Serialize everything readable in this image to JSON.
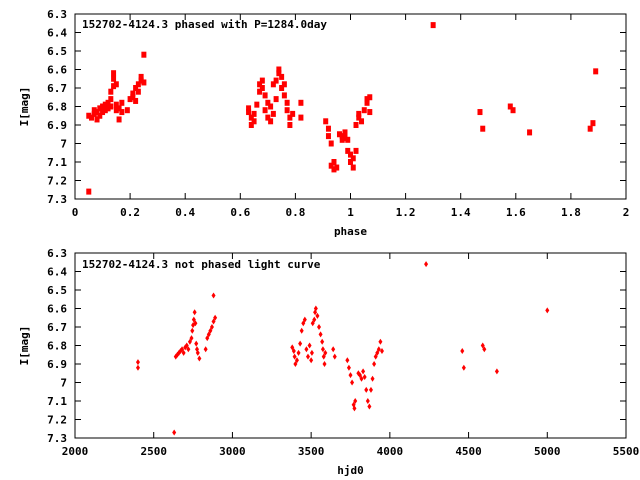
{
  "chart_data": [
    {
      "type": "scatter",
      "title": "152702-4124.3 phased with P=1284.0day",
      "xlabel": "phase",
      "ylabel": "I[mag]",
      "xlim": [
        0,
        2
      ],
      "ylim": [
        7.3,
        6.3
      ],
      "y_inverted": true,
      "xticks": [
        "0",
        "0.2",
        "0.4",
        "0.6",
        "0.8",
        "1",
        "1.2",
        "1.4",
        "1.6",
        "1.8",
        "2"
      ],
      "yticks": [
        "6.3",
        "6.4",
        "6.5",
        "6.6",
        "6.7",
        "6.8",
        "6.9",
        "7",
        "7.1",
        "7.2",
        "7.3"
      ],
      "grid": false,
      "marker_color": "#ff0000",
      "marker": "square",
      "points": [
        [
          0.05,
          7.26
        ],
        [
          0.05,
          6.85
        ],
        [
          0.06,
          6.86
        ],
        [
          0.07,
          6.84
        ],
        [
          0.07,
          6.82
        ],
        [
          0.08,
          6.87
        ],
        [
          0.08,
          6.83
        ],
        [
          0.09,
          6.81
        ],
        [
          0.09,
          6.85
        ],
        [
          0.1,
          6.83
        ],
        [
          0.1,
          6.8
        ],
        [
          0.11,
          6.82
        ],
        [
          0.11,
          6.79
        ],
        [
          0.12,
          6.81
        ],
        [
          0.12,
          6.78
        ],
        [
          0.13,
          6.8
        ],
        [
          0.13,
          6.76
        ],
        [
          0.13,
          6.72
        ],
        [
          0.14,
          6.69
        ],
        [
          0.14,
          6.65
        ],
        [
          0.14,
          6.62
        ],
        [
          0.15,
          6.68
        ],
        [
          0.15,
          6.79
        ],
        [
          0.15,
          6.82
        ],
        [
          0.16,
          6.81
        ],
        [
          0.16,
          6.87
        ],
        [
          0.17,
          6.78
        ],
        [
          0.17,
          6.83
        ],
        [
          0.19,
          6.82
        ],
        [
          0.2,
          6.76
        ],
        [
          0.21,
          6.75
        ],
        [
          0.21,
          6.73
        ],
        [
          0.22,
          6.7
        ],
        [
          0.22,
          6.77
        ],
        [
          0.23,
          6.72
        ],
        [
          0.23,
          6.68
        ],
        [
          0.24,
          6.66
        ],
        [
          0.24,
          6.64
        ],
        [
          0.25,
          6.67
        ],
        [
          0.25,
          6.52
        ],
        [
          0.63,
          6.81
        ],
        [
          0.63,
          6.83
        ],
        [
          0.64,
          6.86
        ],
        [
          0.64,
          6.9
        ],
        [
          0.65,
          6.88
        ],
        [
          0.65,
          6.84
        ],
        [
          0.66,
          6.79
        ],
        [
          0.67,
          6.72
        ],
        [
          0.67,
          6.68
        ],
        [
          0.68,
          6.66
        ],
        [
          0.68,
          6.7
        ],
        [
          0.69,
          6.74
        ],
        [
          0.69,
          6.82
        ],
        [
          0.7,
          6.86
        ],
        [
          0.7,
          6.78
        ],
        [
          0.71,
          6.8
        ],
        [
          0.71,
          6.88
        ],
        [
          0.72,
          6.84
        ],
        [
          0.72,
          6.68
        ],
        [
          0.73,
          6.66
        ],
        [
          0.73,
          6.76
        ],
        [
          0.74,
          6.62
        ],
        [
          0.74,
          6.6
        ],
        [
          0.75,
          6.64
        ],
        [
          0.75,
          6.7
        ],
        [
          0.76,
          6.68
        ],
        [
          0.76,
          6.74
        ],
        [
          0.77,
          6.78
        ],
        [
          0.77,
          6.82
        ],
        [
          0.78,
          6.86
        ],
        [
          0.78,
          6.9
        ],
        [
          0.79,
          6.84
        ],
        [
          0.82,
          6.78
        ],
        [
          0.82,
          6.86
        ],
        [
          0.91,
          6.88
        ],
        [
          0.92,
          6.92
        ],
        [
          0.92,
          6.96
        ],
        [
          0.93,
          7.0
        ],
        [
          0.93,
          7.12
        ],
        [
          0.94,
          7.14
        ],
        [
          0.94,
          7.1
        ],
        [
          0.95,
          7.13
        ],
        [
          0.96,
          6.95
        ],
        [
          0.97,
          6.96
        ],
        [
          0.97,
          6.98
        ],
        [
          0.98,
          6.94
        ],
        [
          0.98,
          6.97
        ],
        [
          0.99,
          6.98
        ],
        [
          0.99,
          7.04
        ],
        [
          1.0,
          7.06
        ],
        [
          1.0,
          7.1
        ],
        [
          1.01,
          7.13
        ],
        [
          1.01,
          7.08
        ],
        [
          1.02,
          7.04
        ],
        [
          1.02,
          6.9
        ],
        [
          1.03,
          6.86
        ],
        [
          1.03,
          6.84
        ],
        [
          1.04,
          6.88
        ],
        [
          1.05,
          6.82
        ],
        [
          1.06,
          6.78
        ],
        [
          1.06,
          6.76
        ],
        [
          1.07,
          6.83
        ],
        [
          1.07,
          6.75
        ],
        [
          1.3,
          6.36
        ],
        [
          1.47,
          6.83
        ],
        [
          1.48,
          6.92
        ],
        [
          1.58,
          6.8
        ],
        [
          1.59,
          6.82
        ],
        [
          1.65,
          6.94
        ],
        [
          1.87,
          6.92
        ],
        [
          1.88,
          6.89
        ],
        [
          1.89,
          6.61
        ]
      ]
    },
    {
      "type": "scatter",
      "title": "152702-4124.3 not phased light curve",
      "xlabel": "hjd0",
      "ylabel": "I[mag]",
      "xlim": [
        2000,
        5500
      ],
      "ylim": [
        7.3,
        6.3
      ],
      "y_inverted": true,
      "xticks": [
        "2000",
        "2500",
        "3000",
        "3500",
        "4000",
        "4500",
        "5000",
        "5500"
      ],
      "yticks": [
        "6.3",
        "6.4",
        "6.5",
        "6.6",
        "6.7",
        "6.8",
        "6.9",
        "7",
        "7.1",
        "7.2",
        "7.3"
      ],
      "grid": false,
      "marker_color": "#ff0000",
      "marker": "diamond",
      "points": [
        [
          2400,
          6.92
        ],
        [
          2400,
          6.89
        ],
        [
          2630,
          7.27
        ],
        [
          2640,
          6.86
        ],
        [
          2650,
          6.85
        ],
        [
          2660,
          6.84
        ],
        [
          2670,
          6.83
        ],
        [
          2680,
          6.82
        ],
        [
          2690,
          6.84
        ],
        [
          2700,
          6.81
        ],
        [
          2710,
          6.8
        ],
        [
          2720,
          6.82
        ],
        [
          2730,
          6.78
        ],
        [
          2740,
          6.76
        ],
        [
          2745,
          6.72
        ],
        [
          2750,
          6.69
        ],
        [
          2755,
          6.66
        ],
        [
          2760,
          6.62
        ],
        [
          2765,
          6.68
        ],
        [
          2770,
          6.79
        ],
        [
          2775,
          6.82
        ],
        [
          2780,
          6.84
        ],
        [
          2790,
          6.87
        ],
        [
          2830,
          6.82
        ],
        [
          2840,
          6.76
        ],
        [
          2850,
          6.74
        ],
        [
          2860,
          6.72
        ],
        [
          2870,
          6.7
        ],
        [
          2880,
          6.67
        ],
        [
          2880,
          6.53
        ],
        [
          2890,
          6.65
        ],
        [
          3380,
          6.81
        ],
        [
          3390,
          6.83
        ],
        [
          3395,
          6.86
        ],
        [
          3400,
          6.9
        ],
        [
          3410,
          6.88
        ],
        [
          3420,
          6.84
        ],
        [
          3430,
          6.79
        ],
        [
          3440,
          6.72
        ],
        [
          3450,
          6.68
        ],
        [
          3460,
          6.66
        ],
        [
          3470,
          6.82
        ],
        [
          3480,
          6.86
        ],
        [
          3490,
          6.8
        ],
        [
          3500,
          6.88
        ],
        [
          3505,
          6.84
        ],
        [
          3510,
          6.68
        ],
        [
          3520,
          6.66
        ],
        [
          3525,
          6.62
        ],
        [
          3530,
          6.6
        ],
        [
          3540,
          6.64
        ],
        [
          3550,
          6.7
        ],
        [
          3560,
          6.74
        ],
        [
          3570,
          6.78
        ],
        [
          3575,
          6.82
        ],
        [
          3580,
          6.86
        ],
        [
          3585,
          6.9
        ],
        [
          3590,
          6.84
        ],
        [
          3640,
          6.82
        ],
        [
          3650,
          6.86
        ],
        [
          3730,
          6.88
        ],
        [
          3740,
          6.92
        ],
        [
          3750,
          6.96
        ],
        [
          3760,
          7.0
        ],
        [
          3770,
          7.12
        ],
        [
          3775,
          7.14
        ],
        [
          3780,
          7.1
        ],
        [
          3800,
          6.95
        ],
        [
          3810,
          6.96
        ],
        [
          3820,
          6.98
        ],
        [
          3830,
          6.94
        ],
        [
          3840,
          6.97
        ],
        [
          3850,
          7.04
        ],
        [
          3860,
          7.1
        ],
        [
          3870,
          7.13
        ],
        [
          3880,
          7.04
        ],
        [
          3890,
          6.98
        ],
        [
          3900,
          6.9
        ],
        [
          3910,
          6.86
        ],
        [
          3920,
          6.84
        ],
        [
          3930,
          6.82
        ],
        [
          3940,
          6.78
        ],
        [
          3950,
          6.83
        ],
        [
          4230,
          6.36
        ],
        [
          4460,
          6.83
        ],
        [
          4470,
          6.92
        ],
        [
          4590,
          6.8
        ],
        [
          4600,
          6.82
        ],
        [
          4680,
          6.94
        ],
        [
          5000,
          6.61
        ]
      ]
    }
  ]
}
